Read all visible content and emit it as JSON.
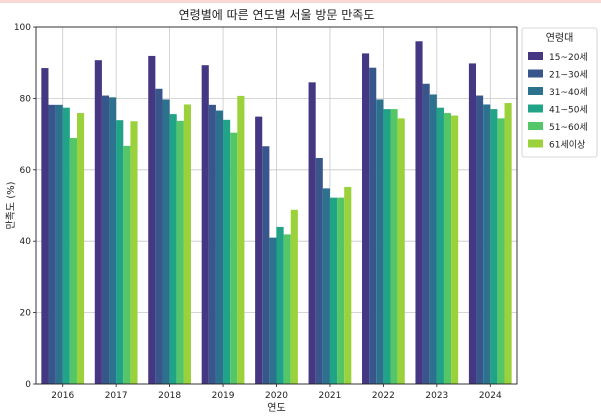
{
  "colors": {
    "top_strip": "#f8d9d7",
    "grid": "#c8c8c8",
    "axis": "#222222",
    "background": "#ffffff"
  },
  "chart_data": {
    "type": "bar",
    "title": "연령별에 따른 연도별 서울 방문 만족도",
    "xlabel": "연도",
    "ylabel": "만족도 (%)",
    "ylim": [
      0,
      100
    ],
    "yticks": [
      0,
      20,
      40,
      60,
      80,
      100
    ],
    "grid": true,
    "legend_title": "연령대",
    "legend_position": "top-right, outside plot",
    "categories": [
      "2016",
      "2017",
      "2018",
      "2019",
      "2020",
      "2021",
      "2022",
      "2023",
      "2024"
    ],
    "series": [
      {
        "name": "15~20세",
        "color": "#453781",
        "values": [
          88.5,
          90.7,
          91.9,
          89.3,
          74.9,
          84.5,
          92.6,
          96.0,
          89.8
        ]
      },
      {
        "name": "21~30세",
        "color": "#39568c",
        "values": [
          78.2,
          80.8,
          82.7,
          78.2,
          66.6,
          63.3,
          88.6,
          84.1,
          80.8
        ]
      },
      {
        "name": "31~40세",
        "color": "#2c728e",
        "values": [
          78.2,
          80.3,
          79.7,
          76.6,
          41.0,
          54.8,
          79.7,
          81.1,
          78.3
        ]
      },
      {
        "name": "41~50세",
        "color": "#20a386",
        "values": [
          77.4,
          73.9,
          75.6,
          74.0,
          44.0,
          52.2,
          77.0,
          77.4,
          77.0
        ]
      },
      {
        "name": "51~60세",
        "color": "#55c667",
        "values": [
          68.9,
          66.7,
          73.7,
          70.4,
          41.9,
          52.2,
          77.0,
          75.9,
          74.4
        ]
      },
      {
        "name": "61세이상",
        "color": "#9bd23c",
        "values": [
          75.9,
          73.6,
          78.3,
          80.7,
          48.8,
          55.2,
          74.4,
          75.2,
          78.7
        ]
      }
    ]
  }
}
